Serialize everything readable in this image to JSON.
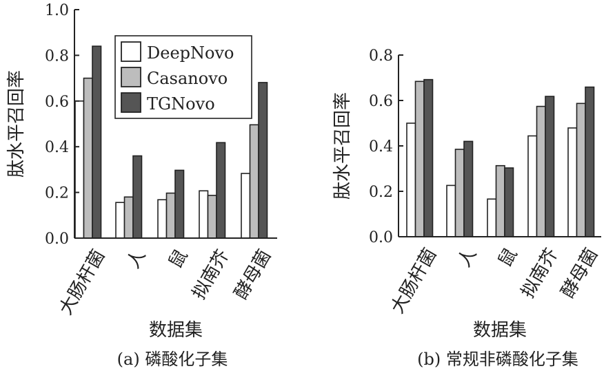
{
  "chart_data": [
    {
      "type": "bar",
      "title": "(a) 磷酸化子集",
      "xlabel": "数据集",
      "ylabel": "肽水平召回率",
      "ylim": [
        0,
        1.0
      ],
      "yticks": [
        "0.0",
        "0.2",
        "0.4",
        "0.6",
        "0.8",
        "1.0"
      ],
      "categories": [
        "大肠杆菌",
        "人",
        "鼠",
        "拟南芥",
        "酵母菌"
      ],
      "legend_position": "top-right",
      "series": [
        {
          "name": "DeepNovo",
          "color": "#ffffff",
          "values": [
            0.6,
            0.156,
            0.168,
            0.207,
            0.283
          ]
        },
        {
          "name": "Casanovo",
          "color": "#bdbdbd",
          "values": [
            0.7,
            0.18,
            0.197,
            0.187,
            0.496
          ]
        },
        {
          "name": "TGNovo",
          "color": "#555555",
          "values": [
            0.84,
            0.36,
            0.297,
            0.418,
            0.681
          ]
        }
      ]
    },
    {
      "type": "bar",
      "title": "(b) 常规非磷酸化子集",
      "xlabel": "数据集",
      "ylabel": "肽水平召回率",
      "ylim": [
        0,
        0.8
      ],
      "yticks": [
        "0.0",
        "0.2",
        "0.4",
        "0.6",
        "0.8"
      ],
      "categories": [
        "大肠杆菌",
        "人",
        "鼠",
        "拟南芥",
        "酵母菌"
      ],
      "series": [
        {
          "name": "DeepNovo",
          "color": "#ffffff",
          "values": [
            0.5,
            0.226,
            0.166,
            0.444,
            0.479
          ]
        },
        {
          "name": "Casanovo",
          "color": "#bdbdbd",
          "values": [
            0.684,
            0.385,
            0.313,
            0.574,
            0.587
          ]
        },
        {
          "name": "TGNovo",
          "color": "#555555",
          "values": [
            0.692,
            0.42,
            0.303,
            0.618,
            0.659
          ]
        }
      ]
    }
  ]
}
